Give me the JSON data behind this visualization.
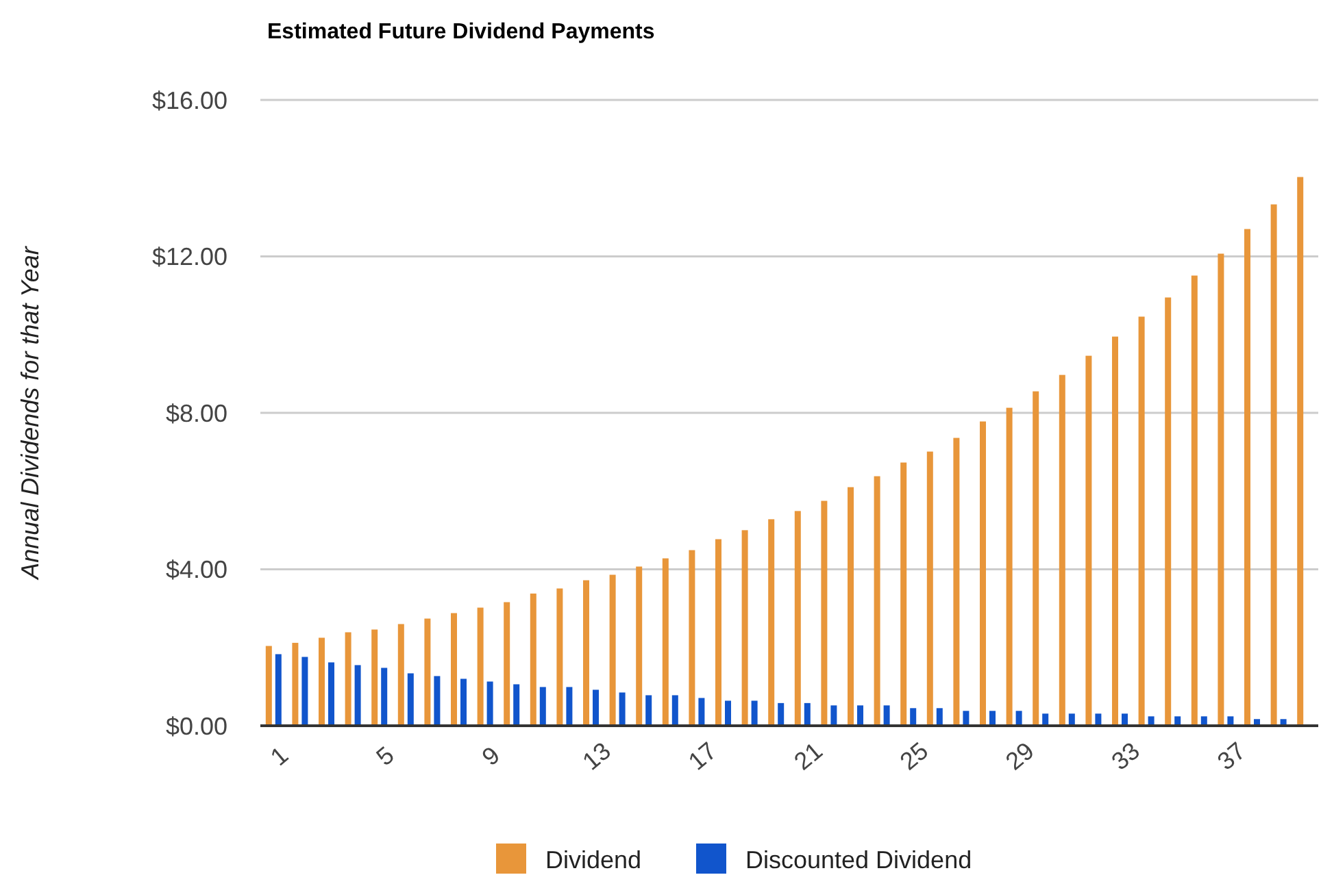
{
  "chart_data": {
    "type": "bar",
    "title": "Estimated Future Dividend Payments",
    "ylabel": "Annual Dividends for that Year",
    "categories": [
      "1",
      null,
      null,
      null,
      "5",
      null,
      null,
      null,
      "9",
      null,
      null,
      null,
      "13",
      null,
      null,
      null,
      "17",
      null,
      null,
      null,
      "21",
      null,
      null,
      null,
      "25",
      null,
      null,
      null,
      "29",
      null,
      null,
      null,
      "33",
      null,
      null,
      null,
      "37",
      null,
      null,
      null
    ],
    "series": [
      {
        "name": "Dividend",
        "color": "#e8963a",
        "values": [
          2.04,
          2.12,
          2.25,
          2.39,
          2.46,
          2.6,
          2.74,
          2.88,
          3.02,
          3.16,
          3.38,
          3.51,
          3.72,
          3.86,
          4.07,
          4.28,
          4.49,
          4.77,
          5.0,
          5.28,
          5.49,
          5.75,
          6.1,
          6.38,
          6.73,
          7.01,
          7.36,
          7.78,
          8.13,
          8.55,
          8.97,
          9.46,
          9.95,
          10.46,
          10.95,
          11.51,
          12.07,
          12.7,
          13.33,
          14.03
        ]
      },
      {
        "name": "Discounted Dividend",
        "color": "#1155cc",
        "values": [
          1.83,
          1.76,
          1.62,
          1.55,
          1.48,
          1.34,
          1.27,
          1.2,
          1.13,
          1.06,
          0.99,
          0.99,
          0.92,
          0.85,
          0.78,
          0.78,
          0.71,
          0.64,
          0.64,
          0.58,
          0.58,
          0.52,
          0.52,
          0.52,
          0.45,
          0.45,
          0.38,
          0.38,
          0.38,
          0.31,
          0.31,
          0.31,
          0.31,
          0.24,
          0.24,
          0.24,
          0.24,
          0.17,
          0.17,
          null
        ]
      }
    ],
    "ylim": [
      0,
      16
    ],
    "yticks": [
      {
        "value": 0,
        "label": "$0.00"
      },
      {
        "value": 4,
        "label": "$4.00"
      },
      {
        "value": 8,
        "label": "$8.00"
      },
      {
        "value": 12,
        "label": "$12.00"
      },
      {
        "value": 16,
        "label": "$16.00"
      }
    ],
    "grid": "y",
    "legend": "bottom"
  }
}
